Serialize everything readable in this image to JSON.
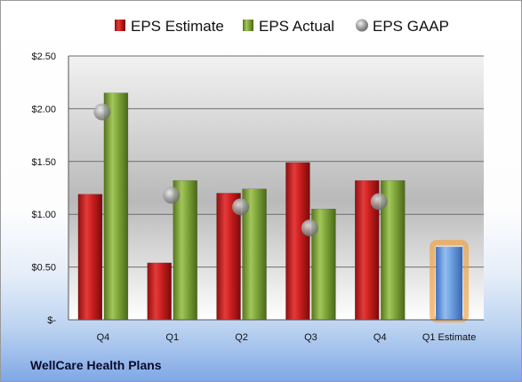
{
  "chart_data": {
    "type": "bar",
    "categories": [
      "Q4",
      "Q1",
      "Q2",
      "Q3",
      "Q4",
      "Q1 Estimate"
    ],
    "series": [
      {
        "name": "EPS Estimate",
        "values": [
          1.19,
          0.54,
          1.2,
          1.49,
          1.32,
          null
        ],
        "color": "#cc1f1f"
      },
      {
        "name": "EPS Actual",
        "values": [
          2.15,
          1.32,
          1.24,
          1.05,
          1.32,
          null
        ],
        "color": "#7ea43a"
      },
      {
        "name": "EPS GAAP",
        "values": [
          1.97,
          1.18,
          1.07,
          0.87,
          1.12,
          null
        ],
        "color": "#a8a8a8"
      }
    ],
    "estimate_bar": {
      "category": "Q1 Estimate",
      "value": 0.69,
      "color": "#6b9ee0",
      "glow": "#f0a040"
    },
    "yticks": [
      {
        "value": 0,
        "label": "$-"
      },
      {
        "value": 0.5,
        "label": "$0.50"
      },
      {
        "value": 1.0,
        "label": "$1.00"
      },
      {
        "value": 1.5,
        "label": "$1.50"
      },
      {
        "value": 2.0,
        "label": "$2.00"
      },
      {
        "value": 2.5,
        "label": "$2.50"
      }
    ],
    "ylim": [
      0,
      2.5
    ],
    "grid": true,
    "legend_position": "top",
    "title": "",
    "xlabel": "",
    "ylabel": ""
  },
  "company_name": "WellCare Health Plans"
}
